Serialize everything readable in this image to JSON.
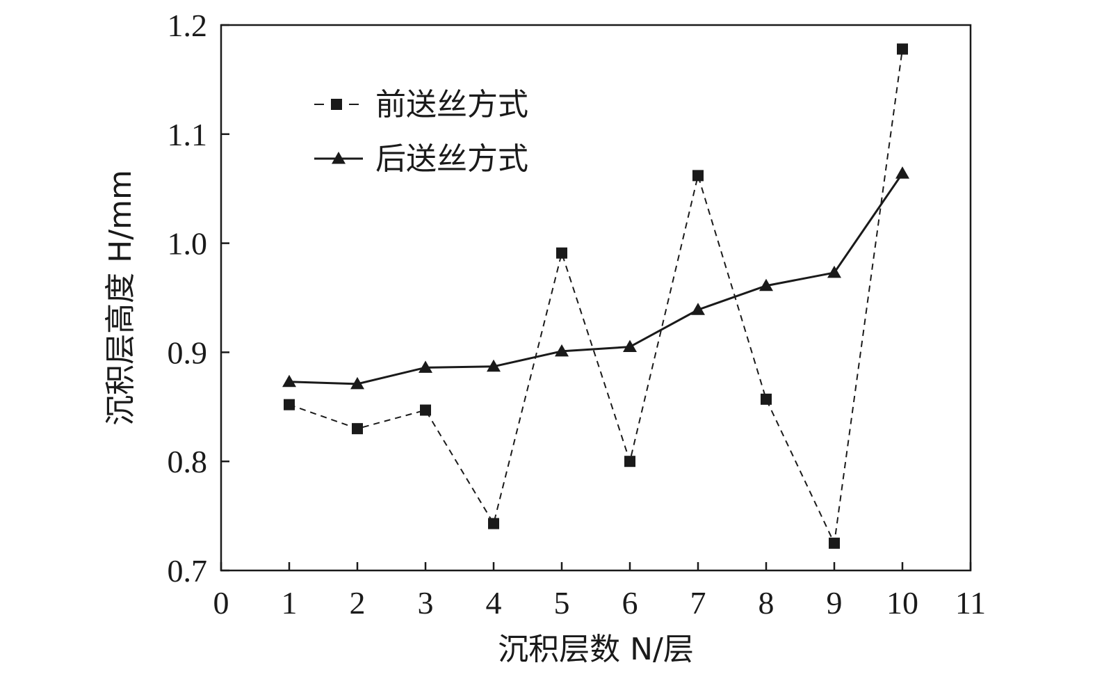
{
  "chart_data": {
    "type": "line",
    "title": "",
    "xlabel": "沉积层数 N/层",
    "ylabel": "沉积层高度 H/mm",
    "xlim": [
      0,
      11
    ],
    "ylim": [
      0.7,
      1.2
    ],
    "xticks": [
      "0",
      "1",
      "2",
      "3",
      "4",
      "5",
      "6",
      "7",
      "8",
      "9",
      "10",
      "11"
    ],
    "yticks": [
      "0.7",
      "0.8",
      "0.9",
      "1.0",
      "1.1",
      "1.2"
    ],
    "grid": false,
    "legend": "top-left",
    "x": [
      1,
      2,
      3,
      4,
      5,
      6,
      7,
      8,
      9,
      10
    ],
    "series": [
      {
        "name": "前送丝方式",
        "marker": "square",
        "line_style": "dashed",
        "color": "#1a1a1a",
        "values": [
          0.852,
          0.83,
          0.847,
          0.743,
          0.991,
          0.8,
          1.062,
          0.857,
          0.725,
          1.178
        ]
      },
      {
        "name": "后送丝方式",
        "marker": "triangle",
        "line_style": "solid",
        "color": "#1a1a1a",
        "values": [
          0.873,
          0.871,
          0.886,
          0.887,
          0.901,
          0.905,
          0.939,
          0.961,
          0.973,
          1.064
        ]
      }
    ]
  }
}
